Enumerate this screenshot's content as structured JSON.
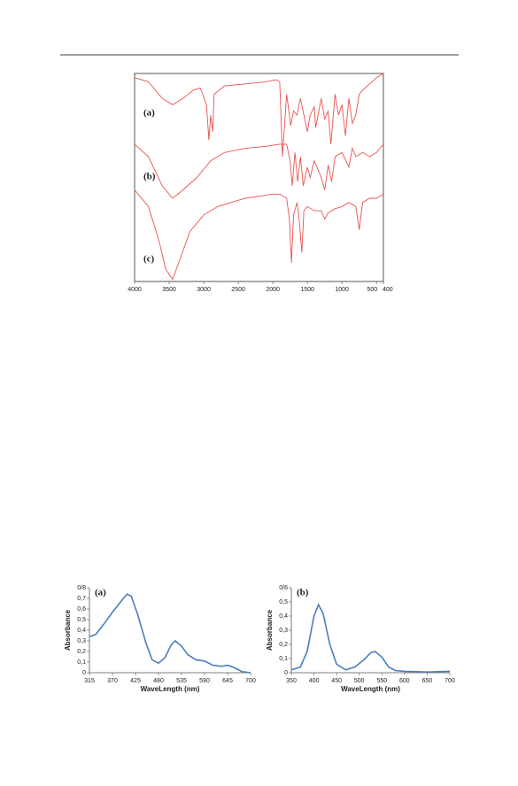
{
  "chart_data": [
    {
      "type": "line",
      "xlim": [
        4000,
        400
      ],
      "ylim": [
        0,
        100
      ],
      "xticks": [
        4000,
        3500,
        3000,
        2500,
        2000,
        1500,
        1000,
        500,
        400
      ],
      "series": [
        {
          "name": "(a)",
          "color": "#e8534f",
          "x": [
            4000,
            3800,
            3600,
            3450,
            3300,
            3150,
            3050,
            2960,
            2925,
            2900,
            2870,
            2850,
            2700,
            2400,
            2100,
            1950,
            1900,
            1860,
            1800,
            1740,
            1700,
            1650,
            1600,
            1500,
            1460,
            1400,
            1380,
            1300,
            1250,
            1200,
            1160,
            1100,
            1050,
            1000,
            950,
            900,
            850,
            800,
            750,
            700,
            600,
            500,
            400
          ],
          "values": [
            98,
            96,
            88,
            85,
            88,
            92,
            93,
            85,
            68,
            80,
            72,
            90,
            94,
            95,
            96,
            97,
            96,
            60,
            90,
            75,
            82,
            80,
            88,
            72,
            80,
            84,
            74,
            88,
            78,
            82,
            66,
            90,
            80,
            85,
            70,
            88,
            76,
            80,
            90,
            92,
            95,
            98,
            100
          ]
        },
        {
          "name": "(b)",
          "color": "#e8534f",
          "x": [
            4000,
            3800,
            3600,
            3450,
            3300,
            3100,
            3000,
            2900,
            2700,
            2400,
            2100,
            1900,
            1800,
            1750,
            1720,
            1680,
            1640,
            1600,
            1560,
            1500,
            1460,
            1400,
            1300,
            1250,
            1200,
            1150,
            1100,
            1000,
            900,
            850,
            800,
            700,
            600,
            500,
            400
          ],
          "values": [
            66,
            60,
            46,
            40,
            44,
            50,
            54,
            58,
            62,
            64,
            65,
            66,
            66,
            58,
            46,
            62,
            48,
            60,
            46,
            55,
            50,
            58,
            50,
            44,
            56,
            48,
            60,
            62,
            55,
            64,
            60,
            62,
            60,
            62,
            66
          ]
        },
        {
          "name": "(c)",
          "color": "#e8534f",
          "x": [
            4000,
            3800,
            3650,
            3550,
            3450,
            3350,
            3200,
            3000,
            2800,
            2600,
            2400,
            2200,
            2000,
            1900,
            1800,
            1760,
            1730,
            1700,
            1650,
            1620,
            1580,
            1550,
            1500,
            1400,
            1300,
            1250,
            1200,
            1100,
            1000,
            900,
            800,
            750,
            700,
            600,
            500,
            400
          ],
          "values": [
            44,
            36,
            20,
            6,
            1,
            10,
            24,
            32,
            36,
            38,
            40,
            41,
            42,
            42,
            40,
            30,
            9,
            32,
            38,
            30,
            14,
            34,
            36,
            34,
            34,
            30,
            33,
            35,
            36,
            38,
            36,
            25,
            38,
            40,
            40,
            42
          ]
        }
      ]
    },
    {
      "type": "line",
      "title": "(a)",
      "x_label": "WaveLength (nm)",
      "y_label": "Absorbance",
      "color": "#4a7ebb",
      "xlim": [
        315,
        700
      ],
      "ylim": [
        0,
        0.8
      ],
      "xticks": [
        315,
        370,
        425,
        480,
        535,
        590,
        645,
        700
      ],
      "yticks": [
        0,
        {
          "value": 0.1,
          "label": "0,1"
        },
        {
          "value": 0.2,
          "label": "0,2"
        },
        {
          "value": 0.3,
          "label": "0,3"
        },
        {
          "value": 0.4,
          "label": "0,4"
        },
        {
          "value": 0.5,
          "label": "0,5"
        },
        {
          "value": 0.6,
          "label": "0,6"
        },
        {
          "value": 0.7,
          "label": "0,7"
        },
        {
          "value": 0.8,
          "label": "0/8"
        }
      ],
      "x": [
        315,
        330,
        350,
        370,
        390,
        405,
        415,
        430,
        450,
        465,
        480,
        495,
        510,
        520,
        535,
        550,
        570,
        590,
        610,
        630,
        645,
        660,
        680,
        700
      ],
      "values": [
        0.34,
        0.36,
        0.46,
        0.57,
        0.67,
        0.74,
        0.72,
        0.55,
        0.28,
        0.12,
        0.09,
        0.14,
        0.26,
        0.3,
        0.25,
        0.17,
        0.12,
        0.11,
        0.07,
        0.06,
        0.07,
        0.05,
        0.01,
        0.0
      ]
    },
    {
      "type": "line",
      "title": "(b)",
      "x_label": "WaveLength (nm)",
      "y_label": "Absorbance",
      "color": "#4a7ebb",
      "xlim": [
        350,
        700
      ],
      "ylim": [
        0,
        0.6
      ],
      "xticks": [
        350,
        400,
        450,
        500,
        550,
        600,
        650,
        700
      ],
      "yticks": [
        0,
        {
          "value": 0.1,
          "label": "0,1"
        },
        {
          "value": 0.2,
          "label": "0,2"
        },
        {
          "value": 0.3,
          "label": "0,3"
        },
        {
          "value": 0.4,
          "label": "0,4"
        },
        {
          "value": 0.5,
          "label": "0,5"
        },
        {
          "value": 0.6,
          "label": "0/6"
        }
      ],
      "x": [
        350,
        370,
        385,
        400,
        410,
        420,
        435,
        450,
        470,
        490,
        510,
        525,
        535,
        550,
        565,
        580,
        600,
        650,
        700
      ],
      "values": [
        0.02,
        0.04,
        0.15,
        0.4,
        0.48,
        0.42,
        0.2,
        0.06,
        0.02,
        0.04,
        0.09,
        0.14,
        0.15,
        0.11,
        0.04,
        0.015,
        0.01,
        0.005,
        0.01
      ]
    }
  ]
}
